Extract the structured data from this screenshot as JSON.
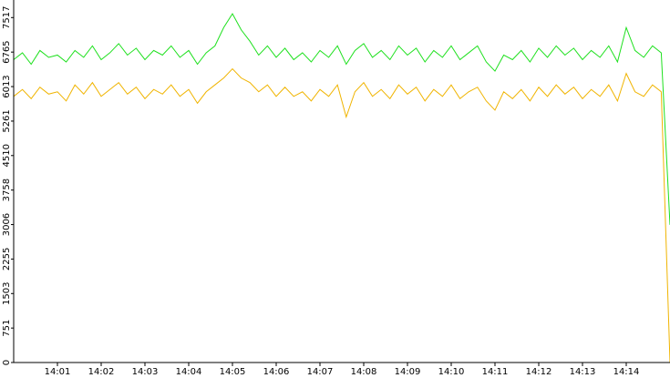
{
  "chart_data": {
    "type": "line",
    "x": [
      840.0,
      840.2,
      840.4,
      840.6,
      840.8,
      841.0,
      841.2,
      841.4,
      841.6,
      841.8,
      842.0,
      842.2,
      842.4,
      842.6,
      842.8,
      843.0,
      843.2,
      843.4,
      843.6,
      843.8,
      844.0,
      844.2,
      844.4,
      844.6,
      844.8,
      845.0,
      845.2,
      845.4,
      845.6,
      845.8,
      846.0,
      846.2,
      846.4,
      846.6,
      846.8,
      847.0,
      847.2,
      847.4,
      847.6,
      847.8,
      848.0,
      848.2,
      848.4,
      848.6,
      848.8,
      849.0,
      849.2,
      849.4,
      849.6,
      849.8,
      850.0,
      850.2,
      850.4,
      850.6,
      850.8,
      851.0,
      851.2,
      851.4,
      851.6,
      851.8,
      852.0,
      852.2,
      852.4,
      852.6,
      852.8,
      853.0,
      853.2,
      853.4,
      853.6,
      853.8,
      854.0,
      854.2,
      854.4,
      854.6,
      854.8,
      855.0
    ],
    "series": [
      {
        "color": "#1ee01e",
        "values": [
          6600,
          6750,
          6500,
          6800,
          6650,
          6700,
          6550,
          6800,
          6650,
          6900,
          6600,
          6750,
          6950,
          6700,
          6850,
          6600,
          6800,
          6700,
          6900,
          6650,
          6800,
          6500,
          6750,
          6900,
          7300,
          7600,
          7250,
          7000,
          6700,
          6900,
          6650,
          6850,
          6600,
          6750,
          6550,
          6800,
          6650,
          6900,
          6500,
          6800,
          6950,
          6650,
          6800,
          6600,
          6900,
          6700,
          6850,
          6550,
          6800,
          6650,
          6900,
          6600,
          6750,
          6900,
          6550,
          6350,
          6700,
          6600,
          6800,
          6550,
          6850,
          6650,
          6900,
          6700,
          6850,
          6600,
          6800,
          6650,
          6900,
          6550,
          7300,
          6800,
          6650,
          6900,
          6750,
          3000
        ]
      },
      {
        "color": "#f0b400",
        "values": [
          5800,
          5950,
          5750,
          6000,
          5850,
          5900,
          5700,
          6050,
          5850,
          6100,
          5800,
          5950,
          6100,
          5850,
          6000,
          5750,
          5950,
          5850,
          6050,
          5800,
          5950,
          5650,
          5900,
          6050,
          6200,
          6400,
          6200,
          6100,
          5900,
          6050,
          5800,
          6000,
          5800,
          5900,
          5700,
          5950,
          5800,
          6050,
          5350,
          5900,
          6100,
          5800,
          5950,
          5750,
          6050,
          5850,
          6000,
          5700,
          5950,
          5800,
          6050,
          5750,
          5900,
          6000,
          5700,
          5500,
          5900,
          5750,
          5950,
          5700,
          6000,
          5800,
          6050,
          5850,
          6000,
          5750,
          5950,
          5800,
          6050,
          5700,
          6300,
          5900,
          5800,
          6050,
          5900,
          0
        ]
      }
    ],
    "xlim": [
      840,
      855
    ],
    "xticks": [
      {
        "value": 841,
        "label": "14:01"
      },
      {
        "value": 842,
        "label": "14:02"
      },
      {
        "value": 843,
        "label": "14:03"
      },
      {
        "value": 844,
        "label": "14:04"
      },
      {
        "value": 845,
        "label": "14:05"
      },
      {
        "value": 846,
        "label": "14:06"
      },
      {
        "value": 847,
        "label": "14:07"
      },
      {
        "value": 848,
        "label": "14:08"
      },
      {
        "value": 849,
        "label": "14:09"
      },
      {
        "value": 850,
        "label": "14:10"
      },
      {
        "value": 851,
        "label": "14:11"
      },
      {
        "value": 852,
        "label": "14:12"
      },
      {
        "value": 853,
        "label": "14:13"
      },
      {
        "value": 854,
        "label": "14:14"
      }
    ],
    "ylim": [
      0,
      7900
    ],
    "yticks": [
      0,
      751,
      1503,
      2255,
      3006,
      3758,
      4510,
      5261,
      6013,
      6765,
      7517
    ]
  }
}
